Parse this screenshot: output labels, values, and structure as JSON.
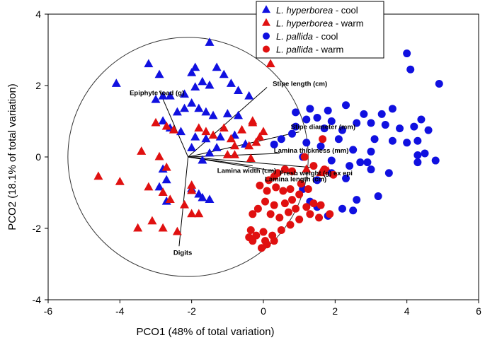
{
  "chart_data": {
    "type": "scatter",
    "title": "",
    "xlabel": "PCO1 (48% of total variation)",
    "ylabel": "PCO2 (18.1% of total variation)",
    "xlim": [
      -6,
      6
    ],
    "ylim": [
      -4,
      4
    ],
    "x_ticks": [
      "-6",
      "-4",
      "-2",
      "0",
      "2",
      "4",
      "6"
    ],
    "y_ticks": [
      "-4",
      "-2",
      "0",
      "2",
      "4"
    ],
    "circle": {
      "center": [
        -2.1,
        0
      ],
      "radius": 3.35
    },
    "colors": {
      "blue": "#1010e0",
      "red": "#e01010"
    },
    "legend": [
      {
        "species": "L. hyperborea",
        "condition": " - cool",
        "marker": "triangle",
        "color": "blue"
      },
      {
        "species": "L. hyperborea",
        "condition": " - warm",
        "marker": "triangle",
        "color": "red"
      },
      {
        "species": "L. pallida",
        "condition": " - cool",
        "marker": "circle",
        "color": "blue"
      },
      {
        "species": "L. pallida",
        "condition": " - warm",
        "marker": "circle",
        "color": "red"
      }
    ],
    "vectors": [
      {
        "label": "Epiphyte load (g)",
        "end": [
          -2.9,
          1.85
        ]
      },
      {
        "label": "Stipe length (cm)",
        "end": [
          0.1,
          1.95
        ]
      },
      {
        "label": "Stipe diameter (mm)",
        "end": [
          1.0,
          0.7
        ]
      },
      {
        "label": "Lamina thickness (mm)",
        "end": [
          0.45,
          0.1
        ]
      },
      {
        "label": "Lamina width (cm)",
        "end": [
          -0.3,
          -0.25
        ]
      },
      {
        "label": "Fresh weight (g) ex epi",
        "end": [
          1.4,
          -0.3
        ]
      },
      {
        "label": "Lamina length (cm)",
        "end": [
          0.95,
          -0.5
        ]
      },
      {
        "label": "Digits",
        "end": [
          -2.35,
          -2.5
        ]
      }
    ],
    "series": [
      {
        "name": "L. hyperborea - cool",
        "marker": "triangle",
        "color": "blue",
        "points": [
          [
            -1.5,
            3.2
          ],
          [
            -4.1,
            2.05
          ],
          [
            -3.2,
            2.6
          ],
          [
            -2.9,
            2.3
          ],
          [
            -2.0,
            2.35
          ],
          [
            -1.9,
            2.5
          ],
          [
            -1.7,
            2.1
          ],
          [
            -1.3,
            2.5
          ],
          [
            -0.9,
            2.05
          ],
          [
            -2.6,
            1.7
          ],
          [
            -2.2,
            1.75
          ],
          [
            -1.9,
            1.95
          ],
          [
            -1.5,
            2.0
          ],
          [
            -1.1,
            2.3
          ],
          [
            -0.7,
            1.85
          ],
          [
            -0.4,
            1.7
          ],
          [
            -3.0,
            1.6
          ],
          [
            -2.8,
            1.7
          ],
          [
            -2.4,
            1.25
          ],
          [
            -2.2,
            1.35
          ],
          [
            -2.0,
            1.5
          ],
          [
            -1.8,
            1.35
          ],
          [
            -1.6,
            1.25
          ],
          [
            -1.4,
            1.15
          ],
          [
            -1.0,
            1.2
          ],
          [
            -0.7,
            1.15
          ],
          [
            -2.8,
            1.0
          ],
          [
            -2.6,
            0.8
          ],
          [
            -2.3,
            0.7
          ],
          [
            -1.9,
            0.55
          ],
          [
            -1.6,
            0.5
          ],
          [
            -1.2,
            0.55
          ],
          [
            -0.8,
            0.6
          ],
          [
            -0.5,
            0.35
          ],
          [
            -2.0,
            0.25
          ],
          [
            -1.5,
            0.1
          ],
          [
            -1.3,
            0.25
          ],
          [
            -1.7,
            -0.1
          ],
          [
            -2.8,
            -0.35
          ],
          [
            -2.7,
            -0.65
          ],
          [
            -2.9,
            -0.85
          ],
          [
            -2.0,
            -0.9
          ],
          [
            -1.8,
            -1.05
          ],
          [
            -1.7,
            -1.15
          ],
          [
            -1.5,
            -1.2
          ],
          [
            -2.7,
            -1.25
          ]
        ]
      },
      {
        "name": "L. hyperborea - warm",
        "marker": "triangle",
        "color": "red",
        "points": [
          [
            0.2,
            2.6
          ],
          [
            -4.6,
            -0.55
          ],
          [
            -4.0,
            -0.7
          ],
          [
            -3.4,
            0.15
          ],
          [
            -3.2,
            -0.85
          ],
          [
            -3.1,
            -1.8
          ],
          [
            -3.5,
            -2.0
          ],
          [
            -2.8,
            -2.0
          ],
          [
            -2.4,
            -2.1
          ],
          [
            -2.0,
            -1.6
          ],
          [
            -1.8,
            -1.6
          ],
          [
            -2.6,
            -1.2
          ],
          [
            -2.8,
            -1.0
          ],
          [
            -2.2,
            -1.35
          ],
          [
            -2.0,
            -0.95
          ],
          [
            -2.9,
            0.0
          ],
          [
            -2.7,
            -0.3
          ],
          [
            -2.0,
            -0.8
          ],
          [
            -3.0,
            0.95
          ],
          [
            -2.7,
            0.85
          ],
          [
            -2.5,
            0.75
          ],
          [
            -1.8,
            0.8
          ],
          [
            -1.6,
            0.7
          ],
          [
            -1.4,
            0.6
          ],
          [
            -1.1,
            0.8
          ],
          [
            -0.9,
            0.5
          ],
          [
            -0.6,
            0.75
          ],
          [
            -0.3,
            1.0
          ],
          [
            -0.4,
            0.3
          ],
          [
            -0.2,
            0.4
          ],
          [
            -0.1,
            0.55
          ],
          [
            -0.3,
            0.95
          ],
          [
            0.0,
            0.7
          ],
          [
            -0.8,
            0.05
          ],
          [
            -1.0,
            0.05
          ],
          [
            1.6,
            -0.45
          ],
          [
            1.8,
            -0.4
          ],
          [
            1.2,
            -0.35
          ],
          [
            -0.35,
            -0.05
          ],
          [
            -0.8,
            0.3
          ]
        ]
      },
      {
        "name": "L. pallida - cool",
        "marker": "circle",
        "color": "blue",
        "points": [
          [
            4.0,
            2.9
          ],
          [
            4.1,
            2.45
          ],
          [
            4.9,
            2.05
          ],
          [
            3.6,
            1.35
          ],
          [
            3.3,
            1.2
          ],
          [
            2.8,
            1.2
          ],
          [
            2.3,
            1.45
          ],
          [
            1.8,
            1.3
          ],
          [
            1.3,
            1.35
          ],
          [
            0.9,
            1.25
          ],
          [
            1.2,
            1.05
          ],
          [
            1.5,
            1.1
          ],
          [
            1.9,
            1.0
          ],
          [
            2.6,
            0.95
          ],
          [
            3.0,
            0.95
          ],
          [
            3.4,
            0.9
          ],
          [
            3.8,
            0.8
          ],
          [
            4.2,
            0.85
          ],
          [
            4.4,
            1.05
          ],
          [
            4.6,
            0.75
          ],
          [
            1.7,
            0.8
          ],
          [
            2.2,
            0.75
          ],
          [
            3.1,
            0.5
          ],
          [
            3.6,
            0.45
          ],
          [
            4.3,
            0.45
          ],
          [
            0.5,
            0.5
          ],
          [
            0.8,
            0.65
          ],
          [
            0.3,
            0.35
          ],
          [
            0.9,
            0.85
          ],
          [
            1.2,
            0.4
          ],
          [
            1.6,
            0.3
          ],
          [
            2.1,
            0.5
          ],
          [
            2.5,
            0.2
          ],
          [
            3.0,
            0.15
          ],
          [
            4.0,
            0.4
          ],
          [
            4.3,
            0.05
          ],
          [
            4.5,
            0.1
          ],
          [
            1.1,
            0.0
          ],
          [
            1.9,
            -0.1
          ],
          [
            2.4,
            -0.25
          ],
          [
            2.7,
            -0.15
          ],
          [
            3.0,
            -0.35
          ],
          [
            3.5,
            -0.45
          ],
          [
            2.3,
            -0.6
          ],
          [
            1.9,
            -0.45
          ],
          [
            2.9,
            -0.15
          ],
          [
            4.3,
            -0.15
          ],
          [
            4.8,
            -0.1
          ],
          [
            1.5,
            -0.65
          ],
          [
            1.8,
            -1.65
          ],
          [
            1.5,
            -1.4
          ],
          [
            1.1,
            -0.9
          ],
          [
            1.3,
            -1.25
          ],
          [
            2.2,
            -1.45
          ],
          [
            2.6,
            -1.2
          ],
          [
            3.2,
            -1.1
          ],
          [
            2.5,
            -1.5
          ]
        ]
      },
      {
        "name": "L. pallida - warm",
        "marker": "circle",
        "color": "red",
        "points": [
          [
            1.65,
            0.5
          ],
          [
            1.15,
            0.0
          ],
          [
            1.4,
            -0.25
          ],
          [
            1.7,
            -0.35
          ],
          [
            1.95,
            -0.5
          ],
          [
            0.8,
            -0.4
          ],
          [
            0.6,
            -0.35
          ],
          [
            0.4,
            -0.45
          ],
          [
            0.3,
            -0.55
          ],
          [
            0.15,
            -0.65
          ],
          [
            -0.1,
            -0.8
          ],
          [
            0.1,
            -0.95
          ],
          [
            0.35,
            -0.85
          ],
          [
            0.55,
            -0.95
          ],
          [
            0.75,
            -0.9
          ],
          [
            1.05,
            -0.75
          ],
          [
            1.25,
            -0.9
          ],
          [
            1.0,
            -1.05
          ],
          [
            0.8,
            -1.2
          ],
          [
            0.6,
            -1.3
          ],
          [
            0.3,
            -1.35
          ],
          [
            0.05,
            -1.25
          ],
          [
            -0.15,
            -1.45
          ],
          [
            -0.3,
            -1.6
          ],
          [
            0.2,
            -1.6
          ],
          [
            0.45,
            -1.7
          ],
          [
            0.7,
            -1.55
          ],
          [
            0.9,
            -1.45
          ],
          [
            1.2,
            -1.4
          ],
          [
            1.4,
            -1.3
          ],
          [
            1.6,
            -1.35
          ],
          [
            1.3,
            -1.6
          ],
          [
            1.0,
            -1.75
          ],
          [
            0.75,
            -1.9
          ],
          [
            0.5,
            -2.05
          ],
          [
            0.25,
            -2.2
          ],
          [
            0.0,
            -2.1
          ],
          [
            -0.2,
            -2.2
          ],
          [
            -0.4,
            -2.25
          ],
          [
            -0.35,
            -2.05
          ],
          [
            0.05,
            -2.35
          ],
          [
            0.3,
            -2.35
          ],
          [
            -0.3,
            -2.35
          ],
          [
            0.1,
            -2.45
          ],
          [
            -0.05,
            -2.55
          ],
          [
            1.55,
            -1.7
          ],
          [
            1.85,
            -1.6
          ]
        ]
      }
    ]
  }
}
